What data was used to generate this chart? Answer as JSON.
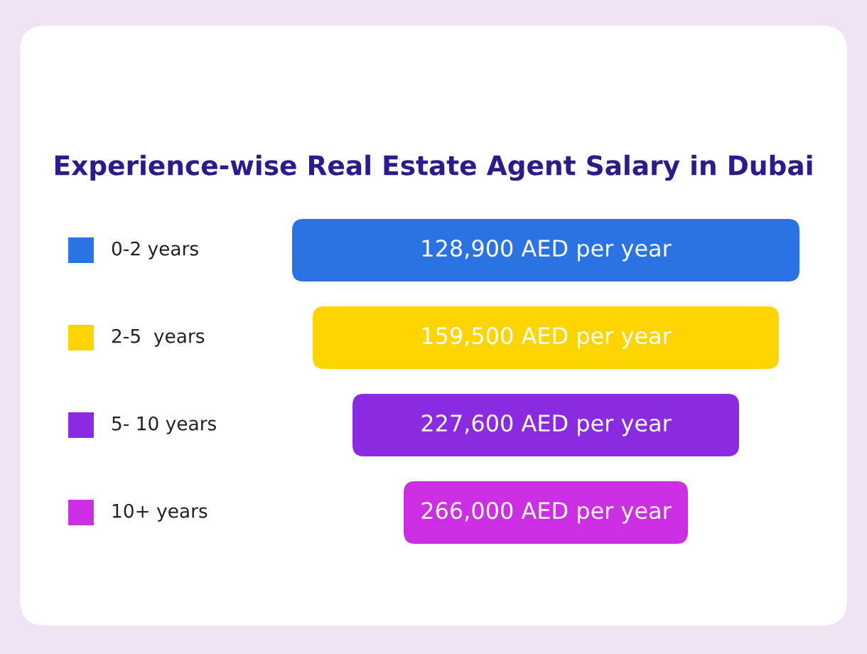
{
  "chart_data": {
    "type": "other",
    "title": "Experience-wise Real Estate Agent Salary in Dubai",
    "categories": [
      "0-2 years",
      "2-5  years",
      "5- 10 years",
      "10+ years"
    ],
    "values": [
      128900,
      159500,
      227600,
      266000
    ],
    "value_labels": [
      "128,900 AED per year",
      "159,500 AED per year",
      "227,600 AED per year",
      "266,000 AED per year"
    ],
    "colors": [
      "#2b72e3",
      "#ffd500",
      "#8a2be2",
      "#cb2ee3"
    ]
  }
}
